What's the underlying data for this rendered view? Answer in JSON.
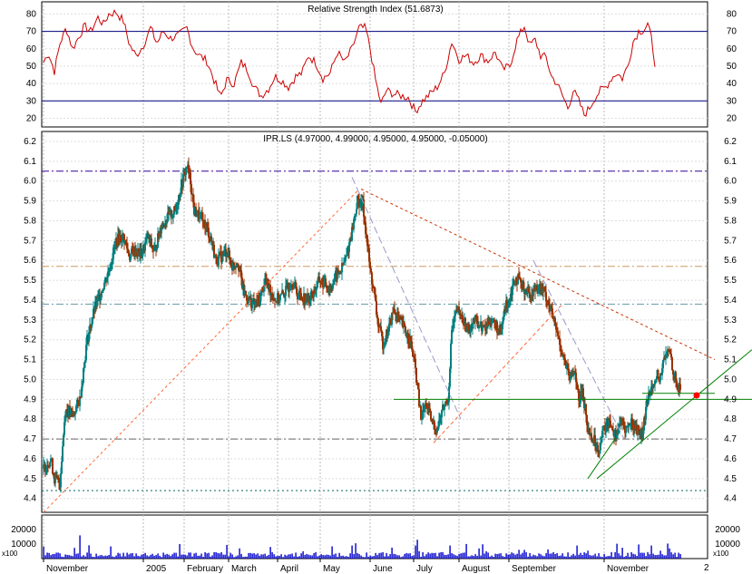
{
  "chart_data": {
    "type": "candlestick",
    "rsi_panel": {
      "title": "Relative Strength Index (51.6873)",
      "yticks": [
        20,
        30,
        40,
        50,
        60,
        70,
        80
      ],
      "ylim": [
        15,
        87
      ],
      "overbought": 70,
      "oversold": 30,
      "line_color": "#cc0000",
      "band_color": "#000080",
      "anchors": [
        [
          0,
          52
        ],
        [
          5,
          58
        ],
        [
          12,
          47
        ],
        [
          18,
          63
        ],
        [
          25,
          72
        ],
        [
          32,
          60
        ],
        [
          38,
          66
        ],
        [
          45,
          73
        ],
        [
          52,
          70
        ],
        [
          60,
          78
        ],
        [
          66,
          74
        ],
        [
          72,
          80
        ],
        [
          80,
          81
        ],
        [
          88,
          76
        ],
        [
          95,
          62
        ],
        [
          102,
          56
        ],
        [
          110,
          62
        ],
        [
          118,
          72
        ],
        [
          125,
          63
        ],
        [
          132,
          70
        ],
        [
          140,
          66
        ],
        [
          150,
          68
        ],
        [
          158,
          72
        ],
        [
          165,
          60
        ],
        [
          172,
          56
        ],
        [
          180,
          53
        ],
        [
          188,
          42
        ],
        [
          195,
          32
        ],
        [
          202,
          42
        ],
        [
          210,
          40
        ],
        [
          218,
          52
        ],
        [
          225,
          48
        ],
        [
          232,
          38
        ],
        [
          240,
          33
        ],
        [
          248,
          37
        ],
        [
          255,
          44
        ],
        [
          262,
          42
        ],
        [
          270,
          38
        ],
        [
          278,
          44
        ],
        [
          285,
          46
        ],
        [
          292,
          56
        ],
        [
          300,
          52
        ],
        [
          308,
          43
        ],
        [
          316,
          46
        ],
        [
          324,
          58
        ],
        [
          332,
          52
        ],
        [
          340,
          60
        ],
        [
          348,
          72
        ],
        [
          355,
          72
        ],
        [
          360,
          60
        ],
        [
          366,
          42
        ],
        [
          372,
          28
        ],
        [
          378,
          36
        ],
        [
          386,
          34
        ],
        [
          394,
          33
        ],
        [
          402,
          32
        ],
        [
          410,
          24
        ],
        [
          418,
          30
        ],
        [
          426,
          34
        ],
        [
          434,
          38
        ],
        [
          442,
          46
        ],
        [
          450,
          64
        ],
        [
          458,
          54
        ],
        [
          466,
          56
        ],
        [
          474,
          52
        ],
        [
          482,
          56
        ],
        [
          490,
          53
        ],
        [
          498,
          58
        ],
        [
          506,
          48
        ],
        [
          514,
          50
        ],
        [
          522,
          65
        ],
        [
          530,
          73
        ],
        [
          536,
          62
        ],
        [
          542,
          65
        ],
        [
          548,
          56
        ],
        [
          554,
          55
        ],
        [
          560,
          44
        ],
        [
          566,
          40
        ],
        [
          572,
          33
        ],
        [
          578,
          26
        ],
        [
          584,
          36
        ],
        [
          590,
          30
        ],
        [
          596,
          22
        ],
        [
          602,
          26
        ],
        [
          608,
          32
        ],
        [
          614,
          36
        ],
        [
          620,
          38
        ],
        [
          626,
          43
        ],
        [
          632,
          46
        ],
        [
          638,
          43
        ],
        [
          644,
          50
        ],
        [
          650,
          64
        ],
        [
          656,
          70
        ],
        [
          662,
          71
        ],
        [
          666,
          74
        ],
        [
          670,
          66
        ],
        [
          674,
          52
        ]
      ]
    },
    "price_panel": {
      "title": "IPR.LS (4.97000, 4.99000, 4.95000, 4.95000, -0.05000)",
      "yticks": [
        4.4,
        4.5,
        4.6,
        4.7,
        4.8,
        4.9,
        5.0,
        5.1,
        5.2,
        5.3,
        5.4,
        5.5,
        5.6,
        5.7,
        5.8,
        5.9,
        6.0,
        6.1,
        6.2
      ],
      "ylim": [
        4.33,
        6.25
      ],
      "up_color": "#008080",
      "down_color": "#993300",
      "close_anchors": [
        [
          0,
          4.55
        ],
        [
          8,
          4.6
        ],
        [
          12,
          4.5
        ],
        [
          18,
          4.48
        ],
        [
          24,
          4.85
        ],
        [
          32,
          4.82
        ],
        [
          40,
          4.9
        ],
        [
          48,
          5.2
        ],
        [
          56,
          5.35
        ],
        [
          64,
          5.45
        ],
        [
          72,
          5.55
        ],
        [
          80,
          5.7
        ],
        [
          88,
          5.72
        ],
        [
          95,
          5.62
        ],
        [
          100,
          5.65
        ],
        [
          108,
          5.63
        ],
        [
          115,
          5.72
        ],
        [
          122,
          5.64
        ],
        [
          130,
          5.78
        ],
        [
          138,
          5.82
        ],
        [
          145,
          5.85
        ],
        [
          152,
          5.98
        ],
        [
          158,
          6.08
        ],
        [
          162,
          6.0
        ],
        [
          166,
          5.85
        ],
        [
          172,
          5.82
        ],
        [
          178,
          5.78
        ],
        [
          184,
          5.72
        ],
        [
          190,
          5.6
        ],
        [
          196,
          5.62
        ],
        [
          202,
          5.65
        ],
        [
          208,
          5.57
        ],
        [
          214,
          5.6
        ],
        [
          220,
          5.45
        ],
        [
          226,
          5.4
        ],
        [
          232,
          5.38
        ],
        [
          238,
          5.4
        ],
        [
          244,
          5.5
        ],
        [
          250,
          5.45
        ],
        [
          256,
          5.4
        ],
        [
          262,
          5.42
        ],
        [
          268,
          5.45
        ],
        [
          274,
          5.5
        ],
        [
          280,
          5.43
        ],
        [
          286,
          5.42
        ],
        [
          292,
          5.4
        ],
        [
          298,
          5.44
        ],
        [
          304,
          5.5
        ],
        [
          310,
          5.48
        ],
        [
          316,
          5.46
        ],
        [
          322,
          5.52
        ],
        [
          328,
          5.55
        ],
        [
          334,
          5.62
        ],
        [
          340,
          5.75
        ],
        [
          346,
          5.9
        ],
        [
          352,
          5.88
        ],
        [
          356,
          5.72
        ],
        [
          360,
          5.55
        ],
        [
          364,
          5.45
        ],
        [
          368,
          5.3
        ],
        [
          374,
          5.18
        ],
        [
          380,
          5.25
        ],
        [
          386,
          5.35
        ],
        [
          392,
          5.3
        ],
        [
          398,
          5.25
        ],
        [
          404,
          5.2
        ],
        [
          410,
          5.05
        ],
        [
          416,
          4.8
        ],
        [
          422,
          4.88
        ],
        [
          428,
          4.78
        ],
        [
          434,
          4.75
        ],
        [
          440,
          4.85
        ],
        [
          446,
          4.9
        ],
        [
          450,
          5.25
        ],
        [
          456,
          5.35
        ],
        [
          462,
          5.3
        ],
        [
          468,
          5.25
        ],
        [
          474,
          5.3
        ],
        [
          480,
          5.28
        ],
        [
          486,
          5.25
        ],
        [
          492,
          5.3
        ],
        [
          498,
          5.28
        ],
        [
          504,
          5.22
        ],
        [
          508,
          5.35
        ],
        [
          514,
          5.42
        ],
        [
          520,
          5.52
        ],
        [
          526,
          5.48
        ],
        [
          532,
          5.45
        ],
        [
          538,
          5.42
        ],
        [
          544,
          5.48
        ],
        [
          550,
          5.45
        ],
        [
          556,
          5.4
        ],
        [
          562,
          5.3
        ],
        [
          568,
          5.2
        ],
        [
          574,
          5.1
        ],
        [
          580,
          5.0
        ],
        [
          586,
          5.05
        ],
        [
          590,
          4.88
        ],
        [
          594,
          4.95
        ],
        [
          600,
          4.75
        ],
        [
          606,
          4.7
        ],
        [
          612,
          4.65
        ],
        [
          618,
          4.75
        ],
        [
          624,
          4.8
        ],
        [
          630,
          4.72
        ],
        [
          636,
          4.78
        ],
        [
          642,
          4.75
        ],
        [
          648,
          4.78
        ],
        [
          654,
          4.75
        ],
        [
          660,
          4.72
        ],
        [
          666,
          4.9
        ],
        [
          672,
          5.0
        ],
        [
          678,
          4.98
        ],
        [
          684,
          5.1
        ],
        [
          690,
          5.15
        ],
        [
          694,
          5.05
        ],
        [
          698,
          4.97
        ],
        [
          702,
          4.95
        ]
      ],
      "hlines": [
        {
          "value": 6.05,
          "color": "#330099",
          "dash": "8,3,2,3"
        },
        {
          "value": 5.57,
          "color": "#cc9966",
          "dash": "8,3,2,3"
        },
        {
          "value": 5.38,
          "color": "#6699aa",
          "dash": "8,3,2,3"
        },
        {
          "value": 4.7,
          "color": "#666666",
          "dash": "8,3,2,3"
        },
        {
          "value": 4.44,
          "color": "#006666",
          "dash": "2,3"
        }
      ],
      "trendlines": [
        {
          "from": [
            0,
            4.33
          ],
          "to": [
            346,
            5.95
          ],
          "color": "#ff6633",
          "dash": "3,3"
        },
        {
          "from": [
            350,
            5.96
          ],
          "to": [
            740,
            5.1
          ],
          "color": "#cc3300",
          "dash": "3,3"
        },
        {
          "from": [
            340,
            6.02
          ],
          "to": [
            460,
            4.8
          ],
          "color": "#9999cc",
          "dash": "8,4"
        },
        {
          "from": [
            430,
            4.68
          ],
          "to": [
            572,
            5.38
          ],
          "color": "#ff6633",
          "dash": "4,3"
        },
        {
          "from": [
            540,
            5.6
          ],
          "to": [
            640,
            4.7
          ],
          "color": "#9999cc",
          "dash": "8,4"
        },
        {
          "from": [
            386,
            4.9
          ],
          "to": [
            829,
            4.9
          ],
          "color": "#008000",
          "dash": ""
        },
        {
          "from": [
            610,
            4.5
          ],
          "to": [
            829,
            5.15
          ],
          "color": "#008000",
          "dash": ""
        },
        {
          "from": [
            600,
            4.5
          ],
          "to": [
            630,
            4.7
          ],
          "color": "#008000",
          "dash": ""
        },
        {
          "from": [
            660,
            4.93
          ],
          "to": [
            740,
            4.93
          ],
          "color": "#008000",
          "dash": ""
        }
      ],
      "marker": {
        "x": 720,
        "value": 4.92,
        "color": "#ff0000"
      }
    },
    "volume_panel": {
      "yticks": [
        10000,
        20000
      ],
      "ylim": [
        0,
        30000
      ],
      "scale_label": "x100",
      "color": "#0000cc"
    },
    "x_axis": {
      "labels": [
        "November",
        "2005",
        "February",
        "March",
        "April",
        "May",
        "June",
        "July",
        "August",
        "September",
        "November"
      ],
      "label_positions": [
        0,
        110,
        155,
        204,
        258,
        305,
        360,
        408,
        458,
        513,
        618
      ],
      "extra_label": "2",
      "n_bars": 730
    },
    "grid": true
  }
}
